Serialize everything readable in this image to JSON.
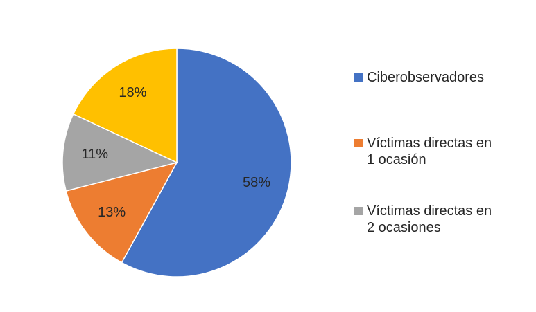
{
  "chart_data": {
    "type": "pie",
    "categories": [
      "Ciberobservadores",
      "Víctimas directas en 1 ocasión",
      "Víctimas directas en 2 ocasiones",
      null
    ],
    "values": [
      58,
      13,
      11,
      18
    ],
    "value_labels": [
      "58%",
      "13%",
      "11%",
      "18%"
    ],
    "colors": [
      "#4472c4",
      "#ed7d31",
      "#a5a5a5",
      "#ffc000"
    ],
    "legend": "right"
  }
}
